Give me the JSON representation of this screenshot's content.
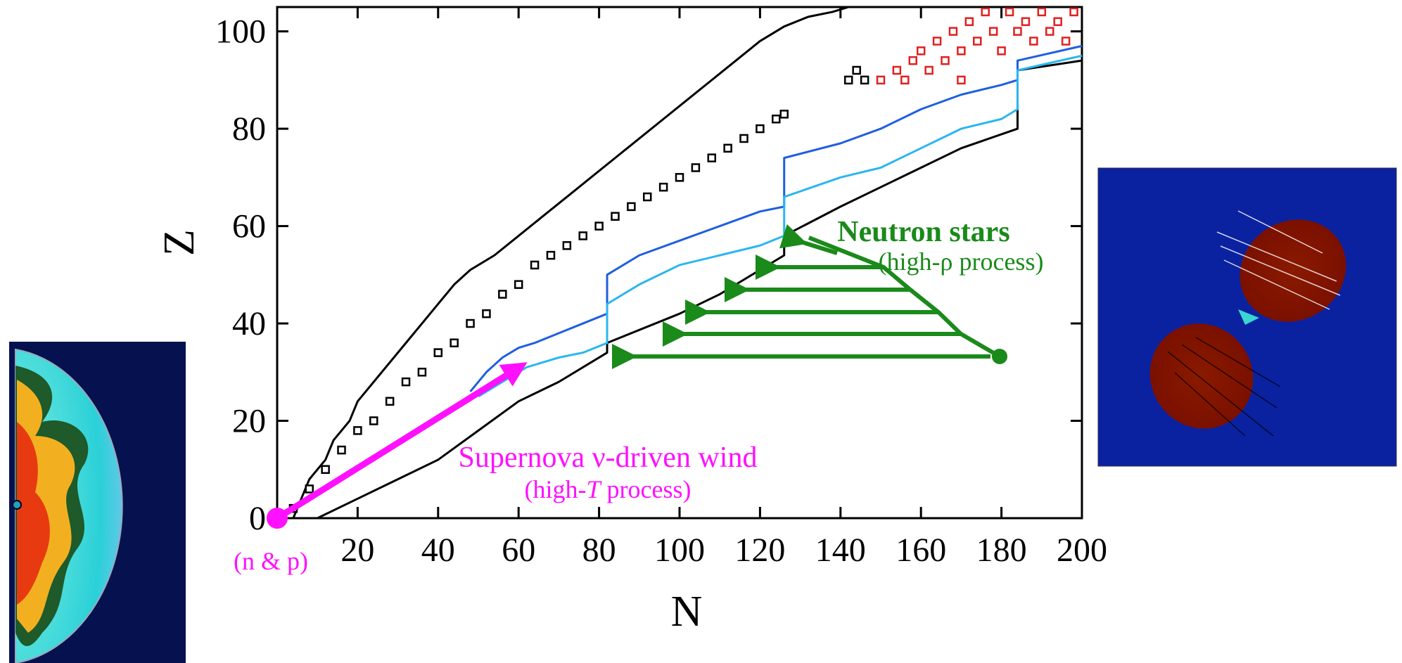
{
  "chart_data": {
    "type": "line",
    "xlabel": "N",
    "ylabel": "Z",
    "xlim": [
      0,
      200
    ],
    "ylim": [
      0,
      105
    ],
    "xticks": [
      20,
      40,
      60,
      80,
      100,
      120,
      140,
      160,
      180,
      200
    ],
    "yticks": [
      0,
      20,
      40,
      60,
      80,
      100
    ],
    "series": [
      {
        "mode": "line",
        "color": "#000000",
        "x": [
          4,
          6,
          8,
          12,
          14,
          18,
          20,
          24,
          28,
          32,
          36,
          40,
          44,
          48,
          54,
          60,
          66,
          72,
          78,
          84,
          90,
          96,
          102,
          108,
          114,
          120,
          126,
          132,
          138,
          142
        ],
        "values": [
          0,
          4,
          8,
          12,
          16,
          20,
          24,
          28,
          32,
          36,
          40,
          44,
          48,
          51,
          54,
          58,
          62,
          66,
          70,
          74,
          78,
          82,
          86,
          90,
          94,
          98,
          101,
          103,
          104,
          105
        ]
      },
      {
        "mode": "line",
        "color": "#000000",
        "x": [
          10,
          20,
          30,
          40,
          50,
          60,
          70,
          82,
          82,
          100,
          110,
          126,
          126,
          140,
          150,
          160,
          170,
          184,
          184,
          200
        ],
        "values": [
          0,
          4,
          8,
          12,
          18,
          24,
          28,
          34,
          36,
          42,
          46,
          54,
          58,
          64,
          68,
          72,
          76,
          80,
          92,
          94
        ]
      },
      {
        "mode": "line",
        "color": "#1f5fe0",
        "x": [
          48,
          52,
          56,
          60,
          64,
          70,
          76,
          82,
          82,
          90,
          100,
          110,
          120,
          126,
          126,
          140,
          150,
          160,
          170,
          180,
          184,
          184,
          200
        ],
        "values": [
          26,
          30,
          33,
          35,
          36,
          38,
          40,
          42,
          50,
          54,
          57,
          60,
          63,
          64,
          74,
          77,
          80,
          84,
          87,
          89,
          90,
          94,
          97
        ]
      },
      {
        "mode": "line",
        "color": "#2bb6f0",
        "x": [
          50,
          56,
          62,
          70,
          76,
          82,
          82,
          90,
          100,
          110,
          120,
          126,
          126,
          140,
          150,
          160,
          170,
          180,
          184,
          184,
          200
        ],
        "values": [
          25,
          28,
          31,
          33,
          34,
          36,
          44,
          48,
          52,
          54,
          56,
          58,
          66,
          70,
          72,
          76,
          80,
          82,
          84,
          92,
          95
        ]
      },
      {
        "mode": "markers",
        "color": "#000000",
        "x": [
          4,
          8,
          12,
          16,
          20,
          24,
          28,
          32,
          36,
          40,
          44,
          48,
          52,
          56,
          60,
          64,
          68,
          72,
          76,
          80,
          84,
          88,
          92,
          96,
          100,
          104,
          108,
          112,
          116,
          120,
          124,
          126,
          142,
          144,
          146
        ],
        "values": [
          2,
          6,
          10,
          14,
          18,
          20,
          24,
          28,
          30,
          34,
          36,
          40,
          42,
          46,
          48,
          52,
          54,
          56,
          58,
          60,
          62,
          64,
          66,
          68,
          70,
          72,
          74,
          76,
          78,
          80,
          82,
          83,
          90,
          92,
          90
        ]
      },
      {
        "mode": "markers",
        "color": "#e02020",
        "x": [
          150,
          154,
          156,
          158,
          160,
          162,
          164,
          166,
          168,
          170,
          170,
          172,
          174,
          176,
          178,
          180,
          182,
          184,
          186,
          188,
          190,
          192,
          194,
          196,
          198
        ],
        "values": [
          90,
          92,
          90,
          94,
          96,
          92,
          98,
          94,
          100,
          96,
          90,
          102,
          98,
          104,
          100,
          96,
          104,
          100,
          102,
          98,
          104,
          100,
          102,
          98,
          104
        ]
      }
    ],
    "annotations": {
      "neutron_stars": "Neutron stars",
      "high_rho": "(high-ρ process)",
      "supernova": "Supernova ν-driven wind",
      "high_T": [
        "(high-",
        "T",
        " process)"
      ],
      "n_and_p": "(n & p)"
    }
  }
}
